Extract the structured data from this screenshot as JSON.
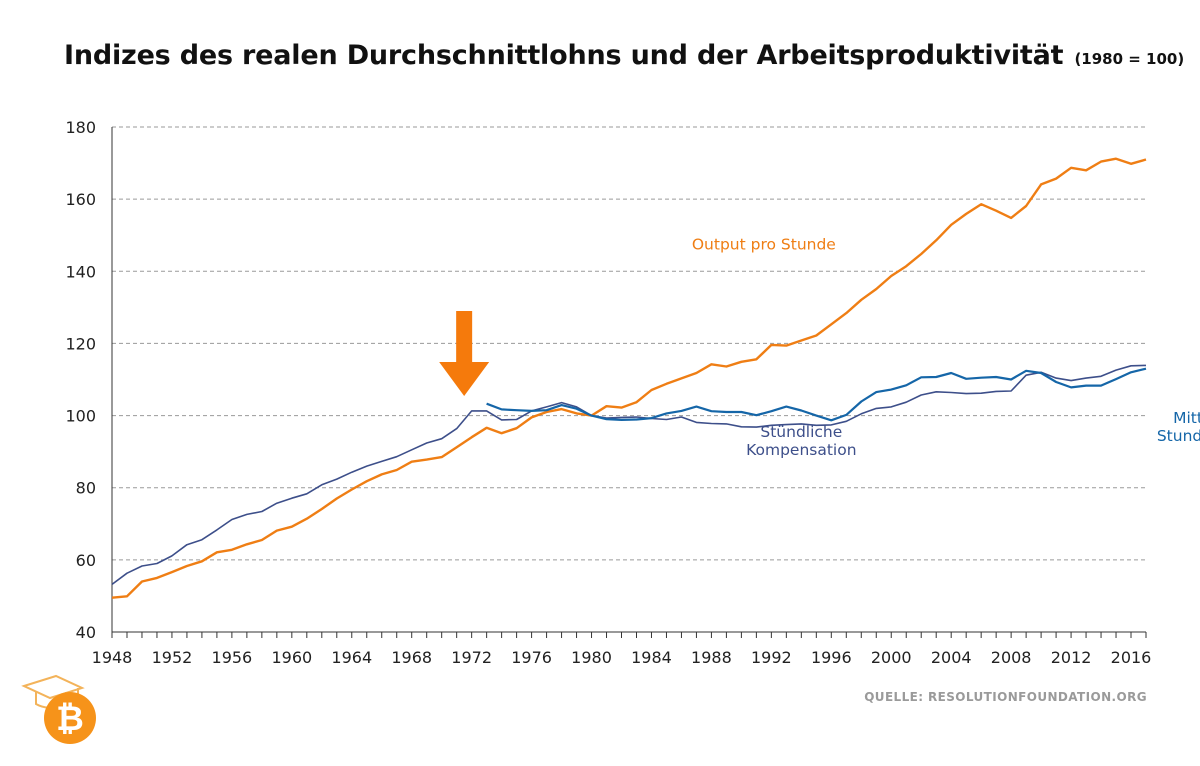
{
  "colors": {
    "output": "#ef7e14",
    "compensation": "#3d4f8a",
    "median": "#1566a8",
    "arrow": "#f57a0c",
    "grid": "#9a9a9a",
    "axis": "#333333"
  },
  "source": "QUELLE:  RESOLUTIONFOUNDATION.ORG",
  "logo": {
    "icon": "bitcoin-graduation-cap-icon"
  },
  "chart_data": {
    "type": "line",
    "title": "Indizes des realen Durchschnittlohns und der Arbeitsproduktivität",
    "subtitle": "(1980 = 100)",
    "xlabel": "",
    "ylabel": "",
    "xlim": [
      1948,
      2017
    ],
    "ylim": [
      40,
      180
    ],
    "y_ticks": [
      40,
      60,
      80,
      100,
      120,
      140,
      160,
      180
    ],
    "x_ticks": [
      1948,
      1952,
      1956,
      1960,
      1964,
      1968,
      1972,
      1976,
      1980,
      1984,
      1988,
      1992,
      1996,
      2000,
      2004,
      2008,
      2012,
      2016
    ],
    "grid": "horizontal dashed",
    "annotation": {
      "type": "arrow",
      "x": 1971.5,
      "direction": "down",
      "color": "#f57a0c"
    },
    "series": [
      {
        "name": "Output pro Stunde",
        "color": "#ef7e14",
        "label_x": 1991.5,
        "label_y": 146,
        "x": [
          1948,
          1949,
          1950,
          1951,
          1952,
          1953,
          1954,
          1955,
          1956,
          1957,
          1958,
          1959,
          1960,
          1961,
          1962,
          1963,
          1964,
          1965,
          1966,
          1967,
          1968,
          1969,
          1970,
          1971,
          1972,
          1973,
          1974,
          1975,
          1976,
          1977,
          1978,
          1979,
          1980,
          1981,
          1982,
          1983,
          1984,
          1985,
          1986,
          1987,
          1988,
          1989,
          1990,
          1991,
          1992,
          1993,
          1994,
          1995,
          1996,
          1997,
          1998,
          1999,
          2000,
          2001,
          2002,
          2003,
          2004,
          2005,
          2006,
          2007,
          2008,
          2009,
          2010,
          2011,
          2012,
          2013,
          2014,
          2015,
          2016,
          2017
        ],
        "values": [
          49.5,
          49.9,
          54,
          55,
          56.6,
          58.3,
          59.6,
          62.1,
          62.8,
          64.3,
          65.5,
          68.1,
          69.2,
          71.4,
          74.1,
          77,
          79.5,
          81.8,
          83.7,
          84.9,
          87.2,
          87.8,
          88.5,
          91.2,
          94,
          96.6,
          95.1,
          96.5,
          99.5,
          101,
          101.8,
          100.6,
          100,
          102.6,
          102.2,
          103.7,
          107.1,
          108.8,
          110.3,
          111.8,
          114.2,
          113.6,
          114.9,
          115.6,
          119.6,
          119.4,
          120.8,
          122.2,
          125.3,
          128.4,
          132.1,
          135.1,
          138.7,
          141.4,
          144.8,
          148.6,
          152.9,
          155.9,
          158.6,
          156.8,
          154.8,
          158.1,
          164.1,
          165.7,
          168.7,
          168,
          170.4,
          171.2,
          169.8,
          171
        ]
      },
      {
        "name": "Stündliche Kompensation",
        "color": "#3d4f8a",
        "label_x": 1994,
        "label_y": 94,
        "x": [
          1948,
          1949,
          1950,
          1951,
          1952,
          1953,
          1954,
          1955,
          1956,
          1957,
          1958,
          1959,
          1960,
          1961,
          1962,
          1963,
          1964,
          1965,
          1966,
          1967,
          1968,
          1969,
          1970,
          1971,
          1972,
          1973,
          1974,
          1975,
          1976,
          1977,
          1978,
          1979,
          1980,
          1981,
          1982,
          1983,
          1984,
          1985,
          1986,
          1987,
          1988,
          1989,
          1990,
          1991,
          1992,
          1993,
          1994,
          1995,
          1996,
          1997,
          1998,
          1999,
          2000,
          2001,
          2002,
          2003,
          2004,
          2005,
          2006,
          2007,
          2008,
          2009,
          2010,
          2011,
          2012,
          2013,
          2014,
          2015,
          2016,
          2017
        ],
        "values": [
          53.2,
          56.3,
          58.3,
          59,
          61.1,
          64.2,
          65.6,
          68.3,
          71.2,
          72.6,
          73.4,
          75.7,
          77.1,
          78.3,
          80.8,
          82.4,
          84.3,
          86,
          87.3,
          88.6,
          90.5,
          92.4,
          93.6,
          96.4,
          101.3,
          101.3,
          98.8,
          98.9,
          101.3,
          102.4,
          103.6,
          102.4,
          100,
          99.3,
          99.5,
          99.6,
          99.2,
          98.9,
          99.6,
          98.1,
          97.8,
          97.7,
          96.9,
          96.8,
          97.3,
          97.5,
          97.7,
          97.3,
          97.4,
          98.4,
          100.5,
          102,
          102.4,
          103.7,
          105.7,
          106.6,
          106.4,
          106.1,
          106.2,
          106.7,
          106.8,
          111.2,
          112,
          110.4,
          109.7,
          110.4,
          110.9,
          112.6,
          113.8,
          113.9
        ]
      },
      {
        "name": "Mittlerer Stundenlohn",
        "color": "#1566a8",
        "label_x": 2021,
        "label_y": 98,
        "x": [
          1973,
          1974,
          1975,
          1976,
          1977,
          1978,
          1979,
          1980,
          1981,
          1982,
          1983,
          1984,
          1985,
          1986,
          1987,
          1988,
          1989,
          1990,
          1991,
          1992,
          1993,
          1994,
          1995,
          1996,
          1997,
          1998,
          1999,
          2000,
          2001,
          2002,
          2003,
          2004,
          2005,
          2006,
          2007,
          2008,
          2009,
          2010,
          2011,
          2012,
          2013,
          2014,
          2015,
          2016,
          2017
        ],
        "values": [
          103.3,
          101.7,
          101.5,
          101.3,
          101.5,
          102.9,
          101.9,
          100,
          99,
          98.8,
          98.9,
          99.3,
          100.6,
          101.3,
          102.5,
          101.2,
          101,
          101,
          100.1,
          101.2,
          102.5,
          101.4,
          100,
          98.7,
          100.2,
          103.9,
          106.5,
          107.2,
          108.4,
          110.6,
          110.7,
          111.8,
          110.2,
          110.5,
          110.7,
          110,
          112.4,
          111.8,
          109.3,
          107.8,
          108.3,
          108.3,
          110.1,
          112,
          113
        ]
      }
    ]
  }
}
